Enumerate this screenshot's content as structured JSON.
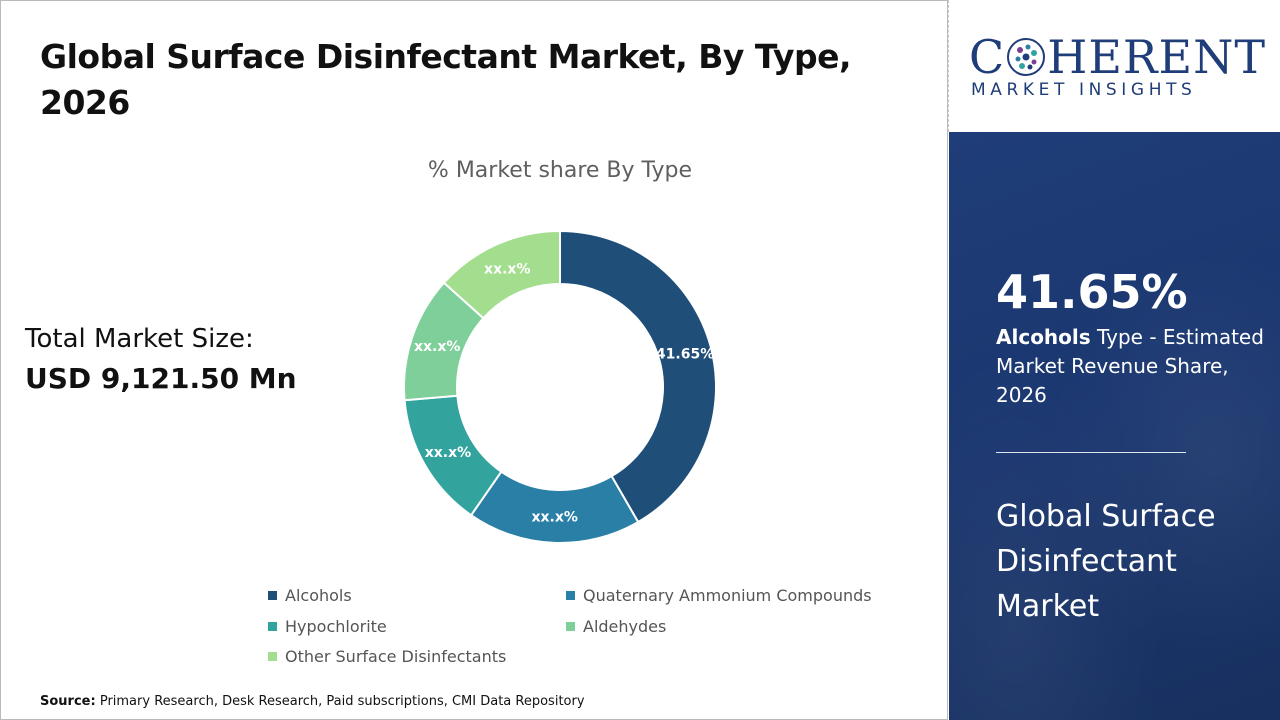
{
  "header": {
    "title": "Global Surface Disinfectant Market, By Type, 2026"
  },
  "market_size": {
    "label": "Total Market Size:",
    "value": "USD 9,121.50 Mn"
  },
  "chart_data": {
    "type": "pie",
    "title": "% Market share By Type",
    "categories": [
      "Alcohols",
      "Quaternary Ammonium Compounds",
      "Hypochlorite",
      "Aldehydes",
      "Other Surface Disinfectants"
    ],
    "values": [
      41.65,
      18.0,
      14.0,
      13.0,
      13.35
    ],
    "data_labels": [
      "41.65%",
      "xx.x%",
      "xx.x%",
      "xx.x%",
      "xx.x%"
    ],
    "colors": [
      "#1f4e79",
      "#2a7fa6",
      "#33a39e",
      "#7fcf9a",
      "#a3dd8e"
    ],
    "legend_position": "bottom",
    "donut": true
  },
  "source": {
    "label": "Source:",
    "text": "Primary Research, Desk Research, Paid subscriptions, CMI Data Repository"
  },
  "brand": {
    "name_prefix": "C",
    "name_suffix": "HERENT",
    "tagline": "MARKET INSIGHTS",
    "color": "#1f3d78"
  },
  "highlight": {
    "value": "41.65%",
    "segment": "Alcohols",
    "description": "Type - Estimated Market Revenue Share, 2026",
    "market_name": "Global Surface Disinfectant Market"
  }
}
